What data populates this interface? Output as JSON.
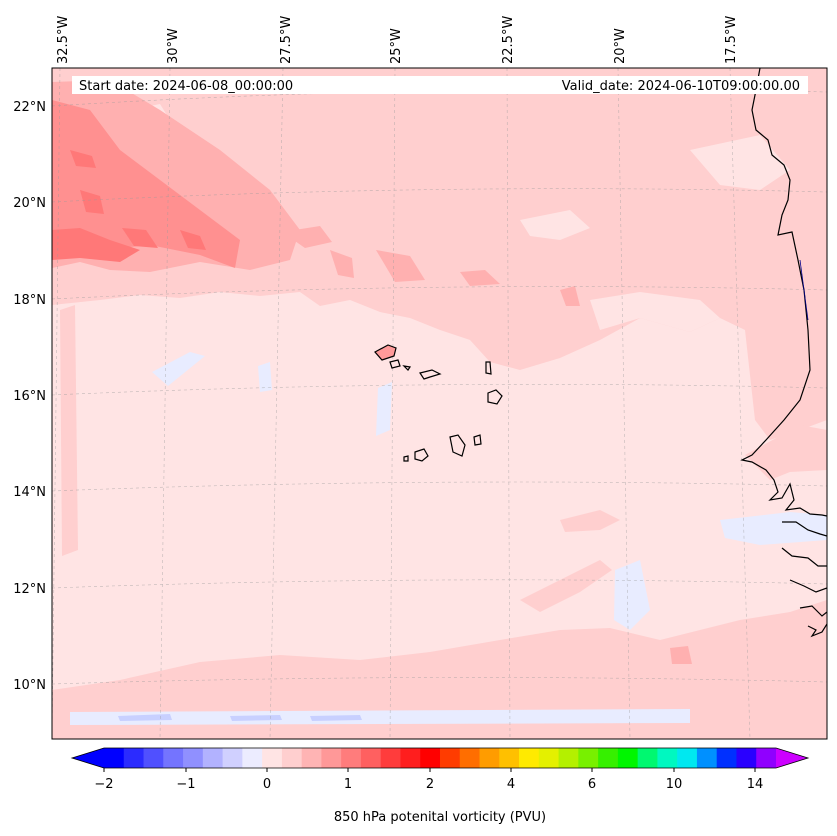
{
  "map": {
    "start_date": "Start date: 2024-06-08_00:00:00",
    "valid_date": "Valid_date: 2024-06-10T09:00:00.00",
    "lon_labels": [
      "32.5°W",
      "30°W",
      "27.5°W",
      "25°W",
      "22.5°W",
      "20°W",
      "17.5°W"
    ],
    "lat_labels": [
      "22°N",
      "20°N",
      "18°N",
      "16°N",
      "14°N",
      "12°N",
      "10°N"
    ]
  },
  "colorbar": {
    "label": "850 hPa potenital vorticity (PVU)",
    "ticks": [
      "−2",
      "−1",
      "0",
      "1",
      "2",
      "4",
      "6",
      "10",
      "14"
    ],
    "colors": [
      "#0000ff",
      "#2b2bff",
      "#5050ff",
      "#7474ff",
      "#9090ff",
      "#b2b2ff",
      "#d0d0ff",
      "#ececff",
      "#ffe4e4",
      "#ffcfcf",
      "#ffb4b4",
      "#ff9898",
      "#ff7c7c",
      "#ff6060",
      "#ff3c3c",
      "#ff1e1e",
      "#ff0000",
      "#ff3c00",
      "#ff6e00",
      "#ff9c00",
      "#ffc000",
      "#ffea00",
      "#e4f000",
      "#b4f000",
      "#78f000",
      "#36f000",
      "#00f600",
      "#00f870",
      "#00f8c0",
      "#00e8f0",
      "#0090ff",
      "#0030ff",
      "#2a00ff",
      "#9000ff"
    ],
    "min_color": "#0000ff",
    "max_color": "#cc00ff"
  },
  "colors": {
    "background_field": "#ffe4e4",
    "light_pink": "#ffcfcf",
    "mid_pink": "#ff9a9a",
    "dark_pink": "#ff7a7a",
    "light_blue": "#e8ecff",
    "coast": "#000000"
  }
}
